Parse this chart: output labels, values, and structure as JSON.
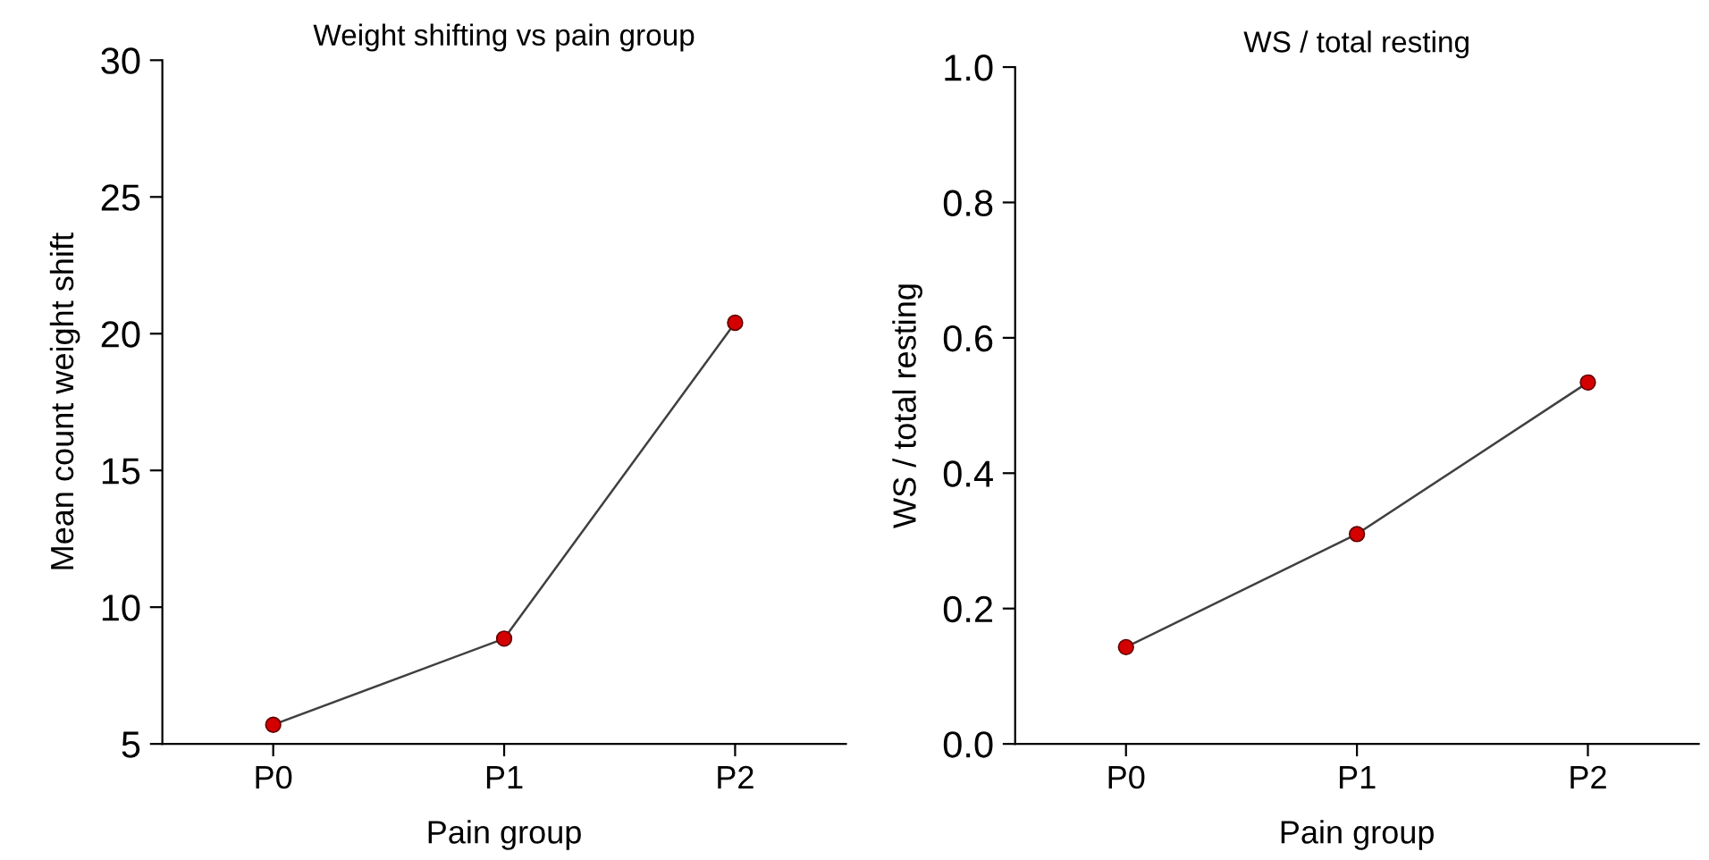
{
  "chart_data": [
    {
      "type": "line",
      "title": "Weight shifting vs pain group",
      "xlabel": "Pain group",
      "ylabel": "Mean count weight shift",
      "categories": [
        "P0",
        "P1",
        "P2"
      ],
      "series": [
        {
          "color": "#d40000",
          "values": [
            5.7,
            8.85,
            20.4
          ]
        }
      ],
      "ylim": [
        5,
        30
      ],
      "yticks": [
        5,
        10,
        15,
        20,
        25,
        30
      ],
      "grid": false,
      "legend": false,
      "marker": "circle",
      "line_style": "solid"
    },
    {
      "type": "line",
      "title": "WS / total resting",
      "xlabel": "Pain group",
      "ylabel": "WS / total resting",
      "categories": [
        "P0",
        "P1",
        "P2"
      ],
      "series": [
        {
          "color": "#d40000",
          "values": [
            0.143,
            0.31,
            0.534
          ]
        }
      ],
      "ylim": [
        0,
        1
      ],
      "yticks": [
        {
          "value": 0,
          "label": "0.0"
        },
        {
          "value": 0.2,
          "label": "0.2"
        },
        {
          "value": 0.4,
          "label": "0.4"
        },
        {
          "value": 0.6,
          "label": "0.6"
        },
        {
          "value": 0.8,
          "label": "0.8"
        },
        {
          "value": 1,
          "label": "1.0"
        }
      ],
      "grid": false,
      "legend": false,
      "marker": "circle",
      "line_style": "solid"
    }
  ]
}
